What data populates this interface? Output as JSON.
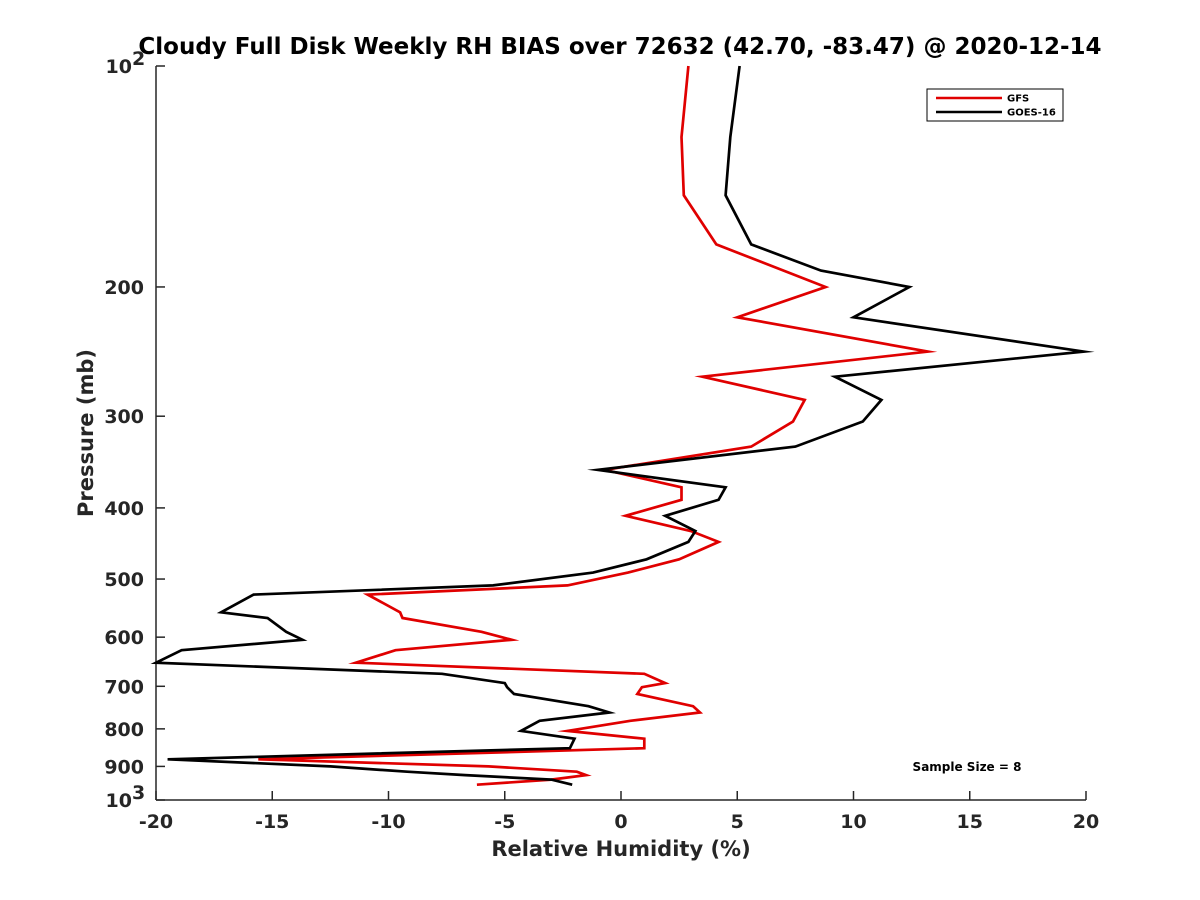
{
  "chart_data": {
    "type": "line",
    "title": "Cloudy Full Disk Weekly RH BIAS over 72632 (42.70, -83.47) @ 2020-12-14",
    "xlabel": "Relative Humidity (%)",
    "ylabel": "Pressure (mb)",
    "xlim": [
      -20,
      20
    ],
    "ylim": [
      100,
      1000
    ],
    "y_scale": "log",
    "y_reversed": true,
    "x_ticks": [
      -20,
      -15,
      -10,
      -5,
      0,
      5,
      10,
      15,
      20
    ],
    "x_tick_labels": [
      "-20",
      "-15",
      "-10",
      "-5",
      "0",
      "5",
      "10",
      "15",
      "20"
    ],
    "y_tick_labels": [
      {
        "value": 100,
        "label": "10",
        "sup": "2"
      },
      {
        "value": 200,
        "label": "200"
      },
      {
        "value": 300,
        "label": "300"
      },
      {
        "value": 400,
        "label": "400"
      },
      {
        "value": 500,
        "label": "500"
      },
      {
        "value": 600,
        "label": "600"
      },
      {
        "value": 700,
        "label": "700"
      },
      {
        "value": 800,
        "label": "800"
      },
      {
        "value": 900,
        "label": "900"
      },
      {
        "value": 1000,
        "label": "10",
        "sup": "3"
      }
    ],
    "grid": false,
    "legend_position": "top-right",
    "annotation": "Sample Size = 8",
    "series": [
      {
        "name": "GFS",
        "color": "#e00000",
        "points": [
          [
            2.9,
            100
          ],
          [
            2.6,
            125
          ],
          [
            2.7,
            150
          ],
          [
            4.1,
            175
          ],
          [
            8.8,
            200
          ],
          [
            5.0,
            220
          ],
          [
            13.2,
            245
          ],
          [
            3.5,
            265
          ],
          [
            7.9,
            285
          ],
          [
            7.4,
            305
          ],
          [
            5.6,
            330
          ],
          [
            -0.7,
            355
          ],
          [
            2.6,
            375
          ],
          [
            2.6,
            390
          ],
          [
            0.2,
            410
          ],
          [
            3.0,
            430
          ],
          [
            4.2,
            445
          ],
          [
            2.5,
            470
          ],
          [
            0.3,
            490
          ],
          [
            -2.3,
            510
          ],
          [
            -10.9,
            525
          ],
          [
            -9.5,
            555
          ],
          [
            -9.4,
            565
          ],
          [
            -6.0,
            590
          ],
          [
            -4.7,
            605
          ],
          [
            -9.7,
            625
          ],
          [
            -11.4,
            650
          ],
          [
            1.0,
            673
          ],
          [
            1.9,
            693
          ],
          [
            0.9,
            702
          ],
          [
            0.7,
            717
          ],
          [
            3.1,
            745
          ],
          [
            3.4,
            760
          ],
          [
            0.4,
            780
          ],
          [
            -2.3,
            805
          ],
          [
            1.0,
            825
          ],
          [
            1.0,
            850
          ],
          [
            -15.6,
            880
          ],
          [
            -5.7,
            900
          ],
          [
            -1.9,
            915
          ],
          [
            -1.5,
            925
          ],
          [
            -3.0,
            938
          ],
          [
            -6.2,
            953
          ]
        ]
      },
      {
        "name": "GOES-16",
        "color": "#000000",
        "points": [
          [
            5.1,
            100
          ],
          [
            4.7,
            125
          ],
          [
            4.5,
            150
          ],
          [
            5.6,
            175
          ],
          [
            8.6,
            190
          ],
          [
            12.4,
            200
          ],
          [
            10.0,
            220
          ],
          [
            19.9,
            245
          ],
          [
            9.2,
            265
          ],
          [
            11.2,
            285
          ],
          [
            10.4,
            305
          ],
          [
            7.5,
            330
          ],
          [
            -1.0,
            355
          ],
          [
            4.5,
            375
          ],
          [
            4.2,
            390
          ],
          [
            1.9,
            410
          ],
          [
            3.2,
            430
          ],
          [
            2.9,
            445
          ],
          [
            1.1,
            470
          ],
          [
            -1.2,
            490
          ],
          [
            -5.5,
            510
          ],
          [
            -15.8,
            525
          ],
          [
            -17.2,
            555
          ],
          [
            -15.2,
            565
          ],
          [
            -14.4,
            590
          ],
          [
            -13.7,
            605
          ],
          [
            -18.9,
            625
          ],
          [
            -20.0,
            650
          ],
          [
            -7.7,
            673
          ],
          [
            -5.0,
            693
          ],
          [
            -4.9,
            702
          ],
          [
            -4.6,
            717
          ],
          [
            -1.4,
            745
          ],
          [
            -0.5,
            760
          ],
          [
            -3.5,
            780
          ],
          [
            -4.3,
            805
          ],
          [
            -2.0,
            825
          ],
          [
            -2.2,
            850
          ],
          [
            -19.5,
            880
          ],
          [
            -12.5,
            900
          ],
          [
            -9.2,
            915
          ],
          [
            -6.7,
            925
          ],
          [
            -3.0,
            938
          ],
          [
            -2.1,
            953
          ]
        ]
      }
    ]
  }
}
